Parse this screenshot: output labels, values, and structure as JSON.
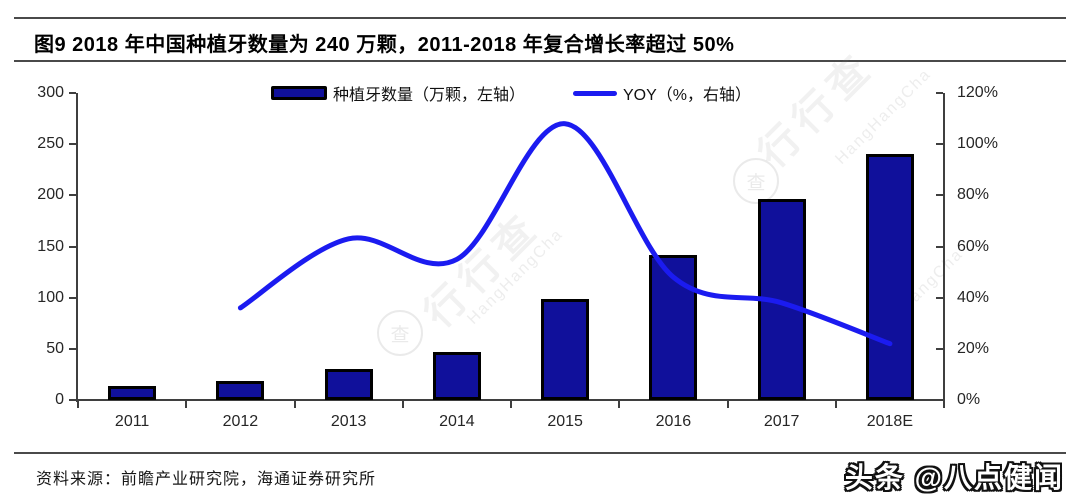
{
  "header": {
    "title": "图9  2018 年中国种植牙数量为 240 万颗，2011-2018 年复合增长率超过 50%"
  },
  "legend": [
    {
      "label": "种植牙数量（万颗，左轴）",
      "type": "bar"
    },
    {
      "label": "YOY（%，右轴）",
      "type": "line"
    }
  ],
  "footer": {
    "source": "资料来源：前瞻产业研究院，海通证券研究所",
    "branding": "头条 @八点健闻"
  },
  "watermark": {
    "cn": "行行查",
    "en": "HangHangCha",
    "logo_glyph": "查"
  },
  "colors": {
    "bar_fill": "#10109B",
    "bar_border": "#000000",
    "line_blue": "#1B1BF0",
    "axis": "#3F3F3F",
    "rule": "#4A4A4A"
  },
  "chart_data": {
    "type": "bar",
    "subtype": "bar+line-dual-axis",
    "categories": [
      "2011",
      "2012",
      "2013",
      "2014",
      "2015",
      "2016",
      "2017",
      "2018E"
    ],
    "series": [
      {
        "name": "种植牙数量（万颗，左轴）",
        "type": "bar",
        "axis": "left",
        "values": [
          14,
          19,
          30,
          47,
          99,
          142,
          196,
          240
        ]
      },
      {
        "name": "YOY（%，右轴）",
        "type": "line",
        "axis": "right",
        "unit": "%",
        "values": [
          null,
          36,
          63,
          55,
          108,
          48,
          38,
          22
        ]
      }
    ],
    "left_axis": {
      "min": 0,
      "max": 300,
      "step": 50,
      "tick_labels": [
        "300",
        "250",
        "200",
        "150",
        "100",
        "50",
        "0"
      ]
    },
    "right_axis": {
      "min": 0,
      "max": 120,
      "step": 20,
      "suffix": "%",
      "tick_labels": [
        "120%",
        "100%",
        "80%",
        "60%",
        "40%",
        "20%",
        "0%"
      ]
    },
    "grid": false,
    "legend_position": "top"
  }
}
